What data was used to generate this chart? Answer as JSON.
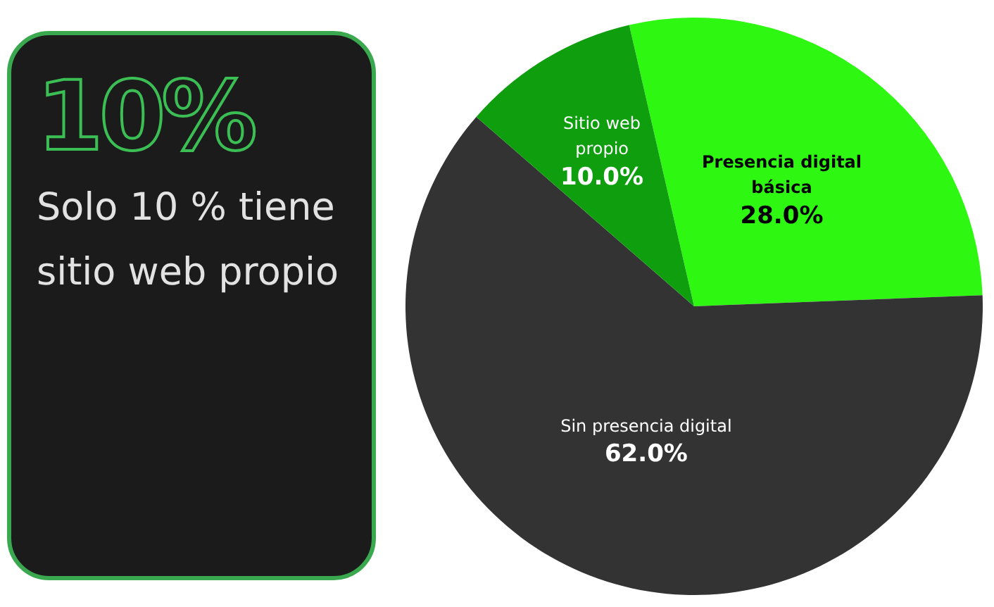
{
  "chart_data": [
    {
      "type": "other",
      "title": "10%",
      "subtitle": "Solo 10 % tiene sitio web propio"
    },
    {
      "type": "pie",
      "categories": [
        "Presencia digital básica",
        "Sin presencia digital",
        "Sitio web propio"
      ],
      "values": [
        28,
        62,
        10
      ],
      "colors": [
        "#2ef712",
        "#333333",
        "#0e9e0e"
      ],
      "value_labels": [
        "28.0%",
        "62.0%",
        "10.0%"
      ],
      "legend": false
    }
  ]
}
